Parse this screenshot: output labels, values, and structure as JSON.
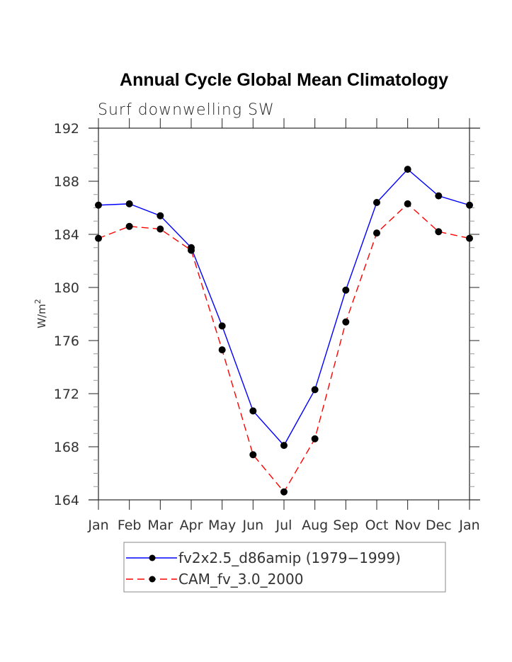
{
  "chart_data": {
    "type": "line",
    "title": "Annual Cycle Global Mean Climatology",
    "subtitle": "Surf downwelling SW",
    "xlabel": "",
    "ylabel": "W/m",
    "ylabel_superscript": "2",
    "categories": [
      "Jan",
      "Feb",
      "Mar",
      "Apr",
      "May",
      "Jun",
      "Jul",
      "Aug",
      "Sep",
      "Oct",
      "Nov",
      "Dec",
      "Jan"
    ],
    "ylim": [
      164,
      192
    ],
    "yticks": [
      164,
      168,
      172,
      176,
      180,
      184,
      188,
      192
    ],
    "y_minor_step": 1,
    "grid": false,
    "legend_position": "bottom",
    "series": [
      {
        "name": "fv2x2.5_d86amip (1979−1999)",
        "color": "#0000ff",
        "line_style": "solid",
        "marker": "filled-circle",
        "values": [
          186.2,
          186.3,
          185.4,
          183.0,
          177.1,
          170.7,
          168.1,
          172.3,
          179.8,
          186.4,
          188.9,
          186.9,
          186.2
        ]
      },
      {
        "name": "CAM_fv_3.0_2000",
        "color": "#ff0000",
        "line_style": "dashed",
        "marker": "filled-circle",
        "values": [
          183.7,
          184.6,
          184.4,
          182.8,
          175.3,
          167.4,
          164.6,
          168.6,
          177.4,
          184.1,
          186.3,
          184.2,
          183.7
        ]
      }
    ]
  }
}
